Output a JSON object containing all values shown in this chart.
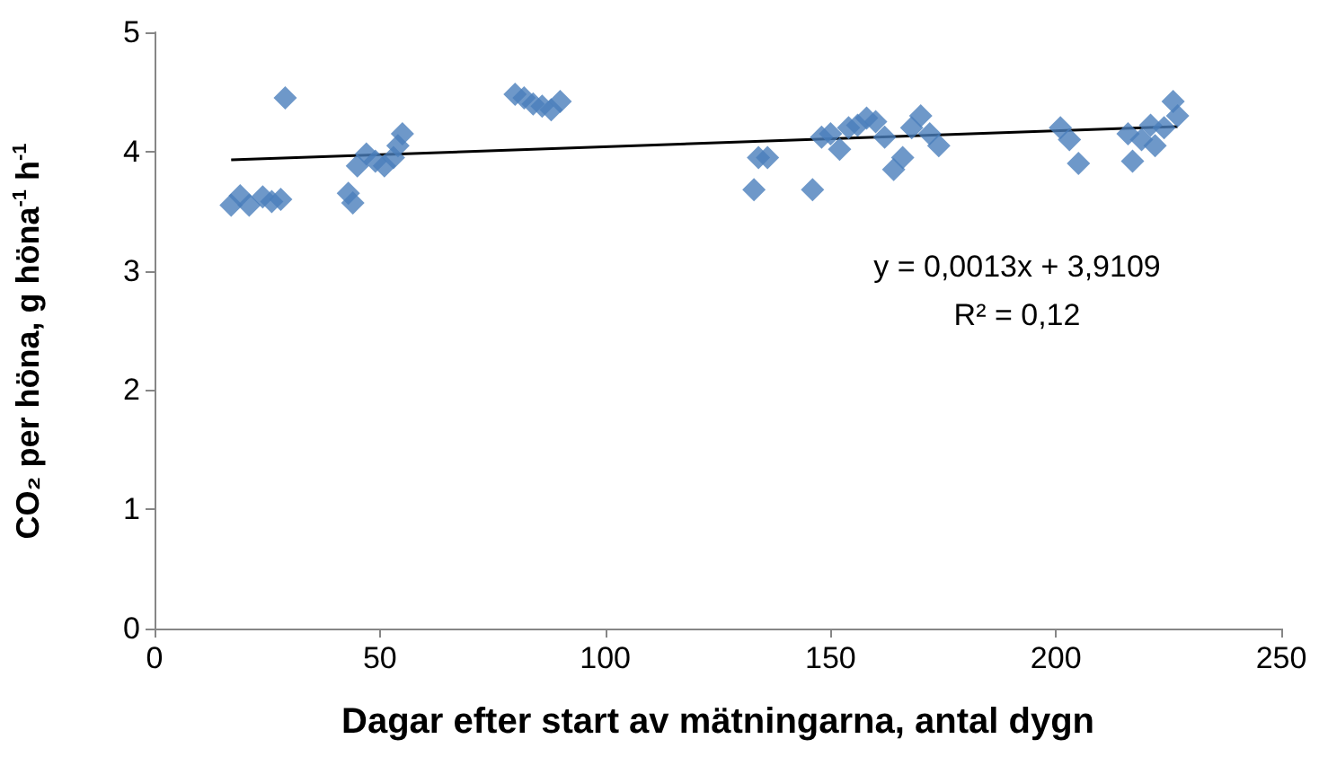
{
  "chart_data": {
    "type": "scatter",
    "xlabel": "Dagar efter start av mätningarna, antal dygn",
    "ylabel": "CO₂ per höna, g höna$^{-1}$ h$^{-1}$",
    "xlim": [
      0,
      250
    ],
    "xticks": [
      0,
      50,
      100,
      150,
      200,
      250
    ],
    "ylim": [
      0,
      5
    ],
    "yticks": [
      0,
      1,
      2,
      3,
      4,
      5
    ],
    "grid": false,
    "marker": "diamond",
    "annotations": [
      "y = 0,0013x + 3,9109",
      "R² = 0,12"
    ],
    "series": [
      {
        "color": "#4a7ebb",
        "x": [
          17,
          19,
          21,
          24,
          26,
          28,
          29,
          43,
          44,
          45,
          47,
          49,
          51,
          53,
          54,
          55,
          80,
          82,
          84,
          86,
          88,
          90,
          133,
          134,
          136,
          146,
          148,
          150,
          152,
          154,
          156,
          158,
          160,
          162,
          164,
          166,
          168,
          170,
          172,
          174,
          201,
          203,
          205,
          216,
          217,
          219,
          221,
          222,
          224,
          226,
          227
        ],
        "values": [
          3.55,
          3.63,
          3.55,
          3.62,
          3.58,
          3.6,
          4.45,
          3.65,
          3.57,
          3.88,
          3.98,
          3.92,
          3.88,
          3.95,
          4.05,
          4.15,
          4.48,
          4.45,
          4.4,
          4.38,
          4.35,
          4.42,
          3.68,
          3.95,
          3.95,
          3.68,
          4.12,
          4.15,
          4.02,
          4.2,
          4.22,
          4.28,
          4.25,
          4.12,
          3.85,
          3.95,
          4.2,
          4.3,
          4.15,
          4.05,
          4.2,
          4.1,
          3.9,
          4.15,
          3.92,
          4.1,
          4.22,
          4.05,
          4.2,
          4.42,
          4.3
        ]
      },
      {
        "type": "line",
        "color": "#000000",
        "marker": "none",
        "line_style": "solid",
        "x": [
          17,
          227
        ],
        "values": [
          3.93,
          4.21
        ]
      }
    ]
  }
}
